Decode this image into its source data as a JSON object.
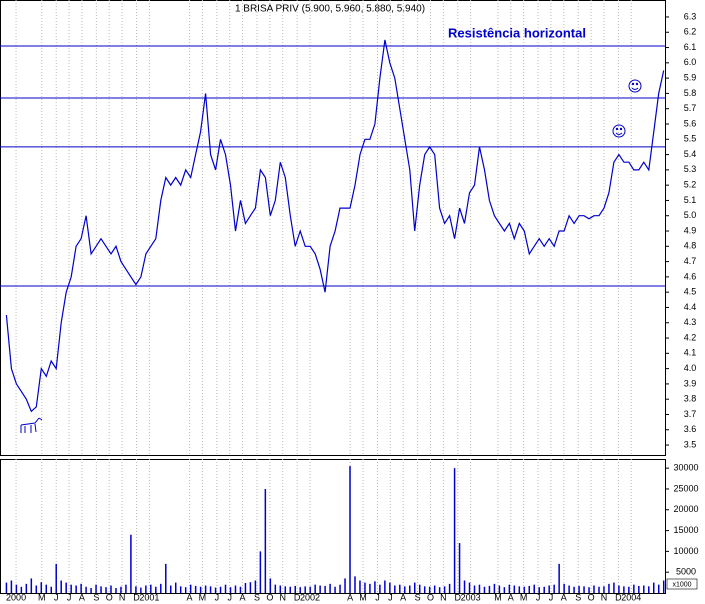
{
  "chart_data": {
    "type": "line",
    "title": "1 BRISA PRIV (5.900, 5.960, 5.880, 5.940)",
    "annotation": "Resistência horizontal",
    "volume_unit_label": "x1000",
    "grid": true,
    "x": [
      2000.11,
      2000.141,
      2000.172,
      2000.203,
      2000.234,
      2000.265,
      2000.296,
      2000.327,
      2000.358,
      2000.389,
      2000.42,
      2000.451,
      2000.482,
      2000.513,
      2000.544,
      2000.575,
      2000.606,
      2000.637,
      2000.668,
      2000.699,
      2000.73,
      2000.761,
      2000.792,
      2000.823,
      2000.854,
      2000.885,
      2000.916,
      2000.947,
      2000.978,
      2001.009,
      2001.04,
      2001.071,
      2001.102,
      2001.133,
      2001.164,
      2001.195,
      2001.226,
      2001.257,
      2001.288,
      2001.319,
      2001.35,
      2001.381,
      2001.412,
      2001.443,
      2001.474,
      2001.505,
      2001.536,
      2001.567,
      2001.598,
      2001.629,
      2001.66,
      2001.691,
      2001.722,
      2001.753,
      2001.784,
      2001.815,
      2001.846,
      2001.877,
      2001.908,
      2001.939,
      2001.97,
      2002.001,
      2002.032,
      2002.063,
      2002.094,
      2002.125,
      2002.156,
      2002.187,
      2002.218,
      2002.249,
      2002.28,
      2002.311,
      2002.342,
      2002.373,
      2002.404,
      2002.435,
      2002.466,
      2002.497,
      2002.528,
      2002.559,
      2002.59,
      2002.621,
      2002.652,
      2002.683,
      2002.714,
      2002.745,
      2002.776,
      2002.807,
      2002.838,
      2002.869,
      2002.9,
      2002.931,
      2002.962,
      2002.993,
      2003.024,
      2003.055,
      2003.086,
      2003.117,
      2003.148,
      2003.179,
      2003.21,
      2003.241,
      2003.272,
      2003.303,
      2003.334,
      2003.365,
      2003.396,
      2003.427,
      2003.458,
      2003.489,
      2003.52,
      2003.551,
      2003.582,
      2003.613,
      2003.644,
      2003.675,
      2003.706,
      2003.737,
      2003.768,
      2003.799,
      2003.83,
      2003.861,
      2003.892,
      2003.923,
      2003.954,
      2003.985,
      2004.016,
      2004.047,
      2004.078,
      2004.109,
      2004.14,
      2004.171,
      2004.202
    ],
    "series": [
      {
        "color": "#0000cc",
        "values": [
          4.35,
          4.0,
          3.9,
          3.85,
          3.8,
          3.72,
          3.75,
          4.0,
          3.95,
          4.05,
          4.0,
          4.3,
          4.5,
          4.6,
          4.8,
          4.85,
          5.0,
          4.75,
          4.8,
          4.85,
          4.8,
          4.75,
          4.8,
          4.7,
          4.65,
          4.6,
          4.55,
          4.6,
          4.75,
          4.8,
          4.85,
          5.1,
          5.25,
          5.2,
          5.25,
          5.2,
          5.3,
          5.25,
          5.4,
          5.55,
          5.8,
          5.4,
          5.3,
          5.5,
          5.4,
          5.2,
          4.9,
          5.1,
          4.95,
          5.0,
          5.05,
          5.3,
          5.25,
          5.0,
          5.1,
          5.35,
          5.25,
          5.0,
          4.8,
          4.9,
          4.8,
          4.8,
          4.75,
          4.65,
          4.5,
          4.8,
          4.9,
          5.05,
          5.05,
          5.05,
          5.2,
          5.4,
          5.5,
          5.5,
          5.6,
          5.9,
          6.15,
          6.0,
          5.9,
          5.7,
          5.5,
          5.3,
          4.9,
          5.2,
          5.4,
          5.45,
          5.4,
          5.05,
          4.95,
          5.0,
          4.85,
          5.05,
          4.95,
          5.15,
          5.2,
          5.45,
          5.3,
          5.1,
          5.0,
          4.95,
          4.9,
          4.95,
          4.85,
          4.95,
          4.9,
          4.75,
          4.8,
          4.85,
          4.8,
          4.85,
          4.8,
          4.9,
          4.9,
          5.0,
          4.95,
          5.0,
          5.0,
          4.98,
          5.0,
          5.0,
          5.05,
          5.15,
          5.35,
          5.4,
          5.35,
          5.35,
          5.3,
          5.3,
          5.35,
          5.3,
          5.55,
          5.8,
          5.95
        ]
      },
      {
        "type": "bar",
        "axis": "y2",
        "color": "#0000cc",
        "values": [
          2500,
          3000,
          2000,
          1500,
          2200,
          3500,
          1800,
          2600,
          2000,
          1500,
          7000,
          3000,
          2500,
          2000,
          1800,
          2200,
          1500,
          1200,
          2000,
          1600,
          1400,
          1800,
          1200,
          1500,
          2000,
          14000,
          1600,
          1300,
          1800,
          2000,
          1500,
          2200,
          7000,
          1800,
          2500,
          1600,
          1400,
          2000,
          1700,
          1500,
          1800,
          1600,
          1300,
          1500,
          2000,
          1400,
          1800,
          1500,
          2400,
          2600,
          3000,
          10000,
          25000,
          3500,
          2000,
          1800,
          1600,
          1500,
          1700,
          1400,
          1600,
          1500,
          2000,
          1800,
          1700,
          2200,
          1500,
          2000,
          3500,
          30500,
          4000,
          3000,
          2500,
          2200,
          2800,
          2000,
          3000,
          2500,
          1800,
          2000,
          1600,
          1800,
          2500,
          2000,
          1600,
          1500,
          1800,
          1400,
          1600,
          2200,
          30000,
          12000,
          3000,
          2500,
          1800,
          2000,
          1500,
          1700,
          2200,
          1800,
          1400,
          2000,
          1800,
          1600,
          1500,
          1700,
          2000,
          1400,
          1500,
          1800,
          2000,
          7000,
          2200,
          1800,
          1500,
          1700,
          1600,
          1400,
          1800,
          1500,
          1600,
          2200,
          2500,
          1800,
          1600,
          1500,
          2000,
          1700,
          1800,
          1600,
          2500,
          2000,
          3000
        ]
      }
    ],
    "hlines": [
      6.11,
      5.77,
      5.45,
      4.54
    ],
    "hline_color": "#0000cc",
    "xlim": [
      2000.07,
      2004.21
    ],
    "xticks": [
      {
        "value": 2000.17,
        "label": "2000"
      },
      {
        "value": 2000.33,
        "label": "M"
      },
      {
        "value": 2000.42,
        "label": "J"
      },
      {
        "value": 2000.5,
        "label": "J"
      },
      {
        "value": 2000.58,
        "label": "A"
      },
      {
        "value": 2000.67,
        "label": "S"
      },
      {
        "value": 2000.75,
        "label": "O"
      },
      {
        "value": 2000.83,
        "label": "N"
      },
      {
        "value": 2000.92,
        "label": "D"
      },
      2001,
      {
        "value": 2001.25,
        "label": "A"
      },
      {
        "value": 2001.33,
        "label": "M"
      },
      {
        "value": 2001.42,
        "label": "J"
      },
      {
        "value": 2001.5,
        "label": "J"
      },
      {
        "value": 2001.58,
        "label": "A"
      },
      {
        "value": 2001.67,
        "label": "S"
      },
      {
        "value": 2001.75,
        "label": "O"
      },
      {
        "value": 2001.83,
        "label": "N"
      },
      {
        "value": 2001.92,
        "label": "D"
      },
      2002,
      {
        "value": 2002.25,
        "label": "A"
      },
      {
        "value": 2002.33,
        "label": "M"
      },
      {
        "value": 2002.42,
        "label": "J"
      },
      {
        "value": 2002.5,
        "label": "J"
      },
      {
        "value": 2002.58,
        "label": "A"
      },
      {
        "value": 2002.67,
        "label": "S"
      },
      {
        "value": 2002.75,
        "label": "O"
      },
      {
        "value": 2002.83,
        "label": "N"
      },
      {
        "value": 2002.92,
        "label": "D"
      },
      2003,
      {
        "value": 2003.17,
        "label": "M"
      },
      {
        "value": 2003.25,
        "label": "A"
      },
      {
        "value": 2003.33,
        "label": "M"
      },
      {
        "value": 2003.42,
        "label": "J"
      },
      {
        "value": 2003.5,
        "label": "J"
      },
      {
        "value": 2003.58,
        "label": "A"
      },
      {
        "value": 2003.67,
        "label": "S"
      },
      {
        "value": 2003.75,
        "label": "O"
      },
      {
        "value": 2003.83,
        "label": "N"
      },
      {
        "value": 2003.92,
        "label": "D"
      },
      2004
    ],
    "ylim": [
      3.435,
      6.411
    ],
    "yticks": [
      3.5,
      3.6,
      3.7,
      3.8,
      3.9,
      {
        "value": 4,
        "label": "4.0"
      },
      4.1,
      4.2,
      4.3,
      4.4,
      4.5,
      4.6,
      4.7,
      4.8,
      4.9,
      {
        "value": 5,
        "label": "5.0"
      },
      5.1,
      5.2,
      5.3,
      5.4,
      5.5,
      5.6,
      5.7,
      5.8,
      5.9,
      {
        "value": 6,
        "label": "6.0"
      },
      6.1,
      6.2,
      6.3
    ],
    "y2lim": [
      0,
      32200
    ],
    "y2ticks": [
      5000,
      10000,
      15000,
      20000,
      25000,
      30000
    ]
  }
}
